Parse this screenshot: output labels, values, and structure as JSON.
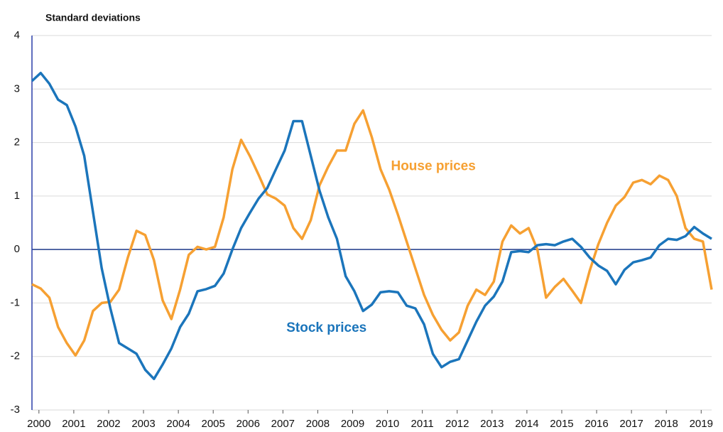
{
  "chart_data": {
    "type": "line",
    "y_axis_label": "Standard deviations",
    "xlim": [
      1999.8,
      2019.3
    ],
    "xticks": [
      2000,
      2001,
      2002,
      2003,
      2004,
      2005,
      2006,
      2007,
      2008,
      2009,
      2010,
      2011,
      2012,
      2013,
      2014,
      2015,
      2016,
      2017,
      2018,
      2019
    ],
    "ylim": [
      -3,
      4
    ],
    "yticks": [
      -3,
      -2,
      -1,
      0,
      1,
      2,
      3,
      4
    ],
    "grid": true,
    "x": [
      1999.8,
      2000.05,
      2000.3,
      2000.55,
      2000.8,
      2001.05,
      2001.3,
      2001.55,
      2001.8,
      2002.05,
      2002.3,
      2002.55,
      2002.8,
      2003.05,
      2003.3,
      2003.55,
      2003.8,
      2004.05,
      2004.3,
      2004.55,
      2004.8,
      2005.05,
      2005.3,
      2005.55,
      2005.8,
      2006.05,
      2006.3,
      2006.55,
      2006.8,
      2007.05,
      2007.3,
      2007.55,
      2007.8,
      2008.05,
      2008.3,
      2008.55,
      2008.8,
      2009.05,
      2009.3,
      2009.55,
      2009.8,
      2010.05,
      2010.3,
      2010.55,
      2010.8,
      2011.05,
      2011.3,
      2011.55,
      2011.8,
      2012.05,
      2012.3,
      2012.55,
      2012.8,
      2013.05,
      2013.3,
      2013.55,
      2013.8,
      2014.05,
      2014.3,
      2014.55,
      2014.8,
      2015.05,
      2015.3,
      2015.55,
      2015.8,
      2016.05,
      2016.3,
      2016.55,
      2016.8,
      2017.05,
      2017.3,
      2017.55,
      2017.8,
      2018.05,
      2018.3,
      2018.55,
      2018.8,
      2019.05,
      2019.3
    ],
    "series": [
      {
        "name": "House prices",
        "color": "#f6a032",
        "values": [
          -0.65,
          -0.73,
          -0.9,
          -1.45,
          -1.75,
          -1.98,
          -1.7,
          -1.15,
          -1.0,
          -0.98,
          -0.75,
          -0.15,
          0.35,
          0.27,
          -0.2,
          -0.95,
          -1.3,
          -0.75,
          -0.1,
          0.05,
          0.0,
          0.05,
          0.6,
          1.5,
          2.05,
          1.75,
          1.4,
          1.03,
          0.95,
          0.82,
          0.4,
          0.2,
          0.55,
          1.2,
          1.55,
          1.85,
          1.85,
          2.35,
          2.6,
          2.1,
          1.5,
          1.12,
          0.65,
          0.15,
          -0.35,
          -0.85,
          -1.22,
          -1.5,
          -1.7,
          -1.55,
          -1.05,
          -0.75,
          -0.85,
          -0.6,
          0.15,
          0.45,
          0.3,
          0.4,
          0.0,
          -0.9,
          -0.7,
          -0.55,
          -0.77,
          -1.0,
          -0.4,
          0.1,
          0.5,
          0.82,
          0.98,
          1.25,
          1.3,
          1.22,
          1.38,
          1.3,
          1.0,
          0.4,
          0.2,
          0.15,
          -0.75
        ],
        "label_at": [
          2010.1,
          1.55
        ]
      },
      {
        "name": "Stock prices",
        "color": "#1b75bb",
        "values": [
          3.15,
          3.3,
          3.1,
          2.8,
          2.7,
          2.3,
          1.75,
          0.7,
          -0.35,
          -1.1,
          -1.75,
          -1.85,
          -1.95,
          -2.25,
          -2.42,
          -2.15,
          -1.85,
          -1.45,
          -1.2,
          -0.78,
          -0.74,
          -0.68,
          -0.45,
          0.0,
          0.4,
          0.68,
          0.95,
          1.15,
          1.5,
          1.85,
          2.4,
          2.4,
          1.75,
          1.1,
          0.6,
          0.2,
          -0.5,
          -0.78,
          -1.15,
          -1.03,
          -0.8,
          -0.78,
          -0.8,
          -1.05,
          -1.1,
          -1.4,
          -1.95,
          -2.2,
          -2.1,
          -2.05,
          -1.7,
          -1.35,
          -1.05,
          -0.88,
          -0.6,
          -0.05,
          -0.03,
          -0.05,
          0.08,
          0.1,
          0.08,
          0.15,
          0.2,
          0.05,
          -0.15,
          -0.3,
          -0.4,
          -0.65,
          -0.38,
          -0.24,
          -0.2,
          -0.15,
          0.08,
          0.2,
          0.18,
          0.25,
          0.42,
          0.3,
          0.2
        ],
        "label_at": [
          2007.1,
          -1.47
        ]
      }
    ]
  }
}
